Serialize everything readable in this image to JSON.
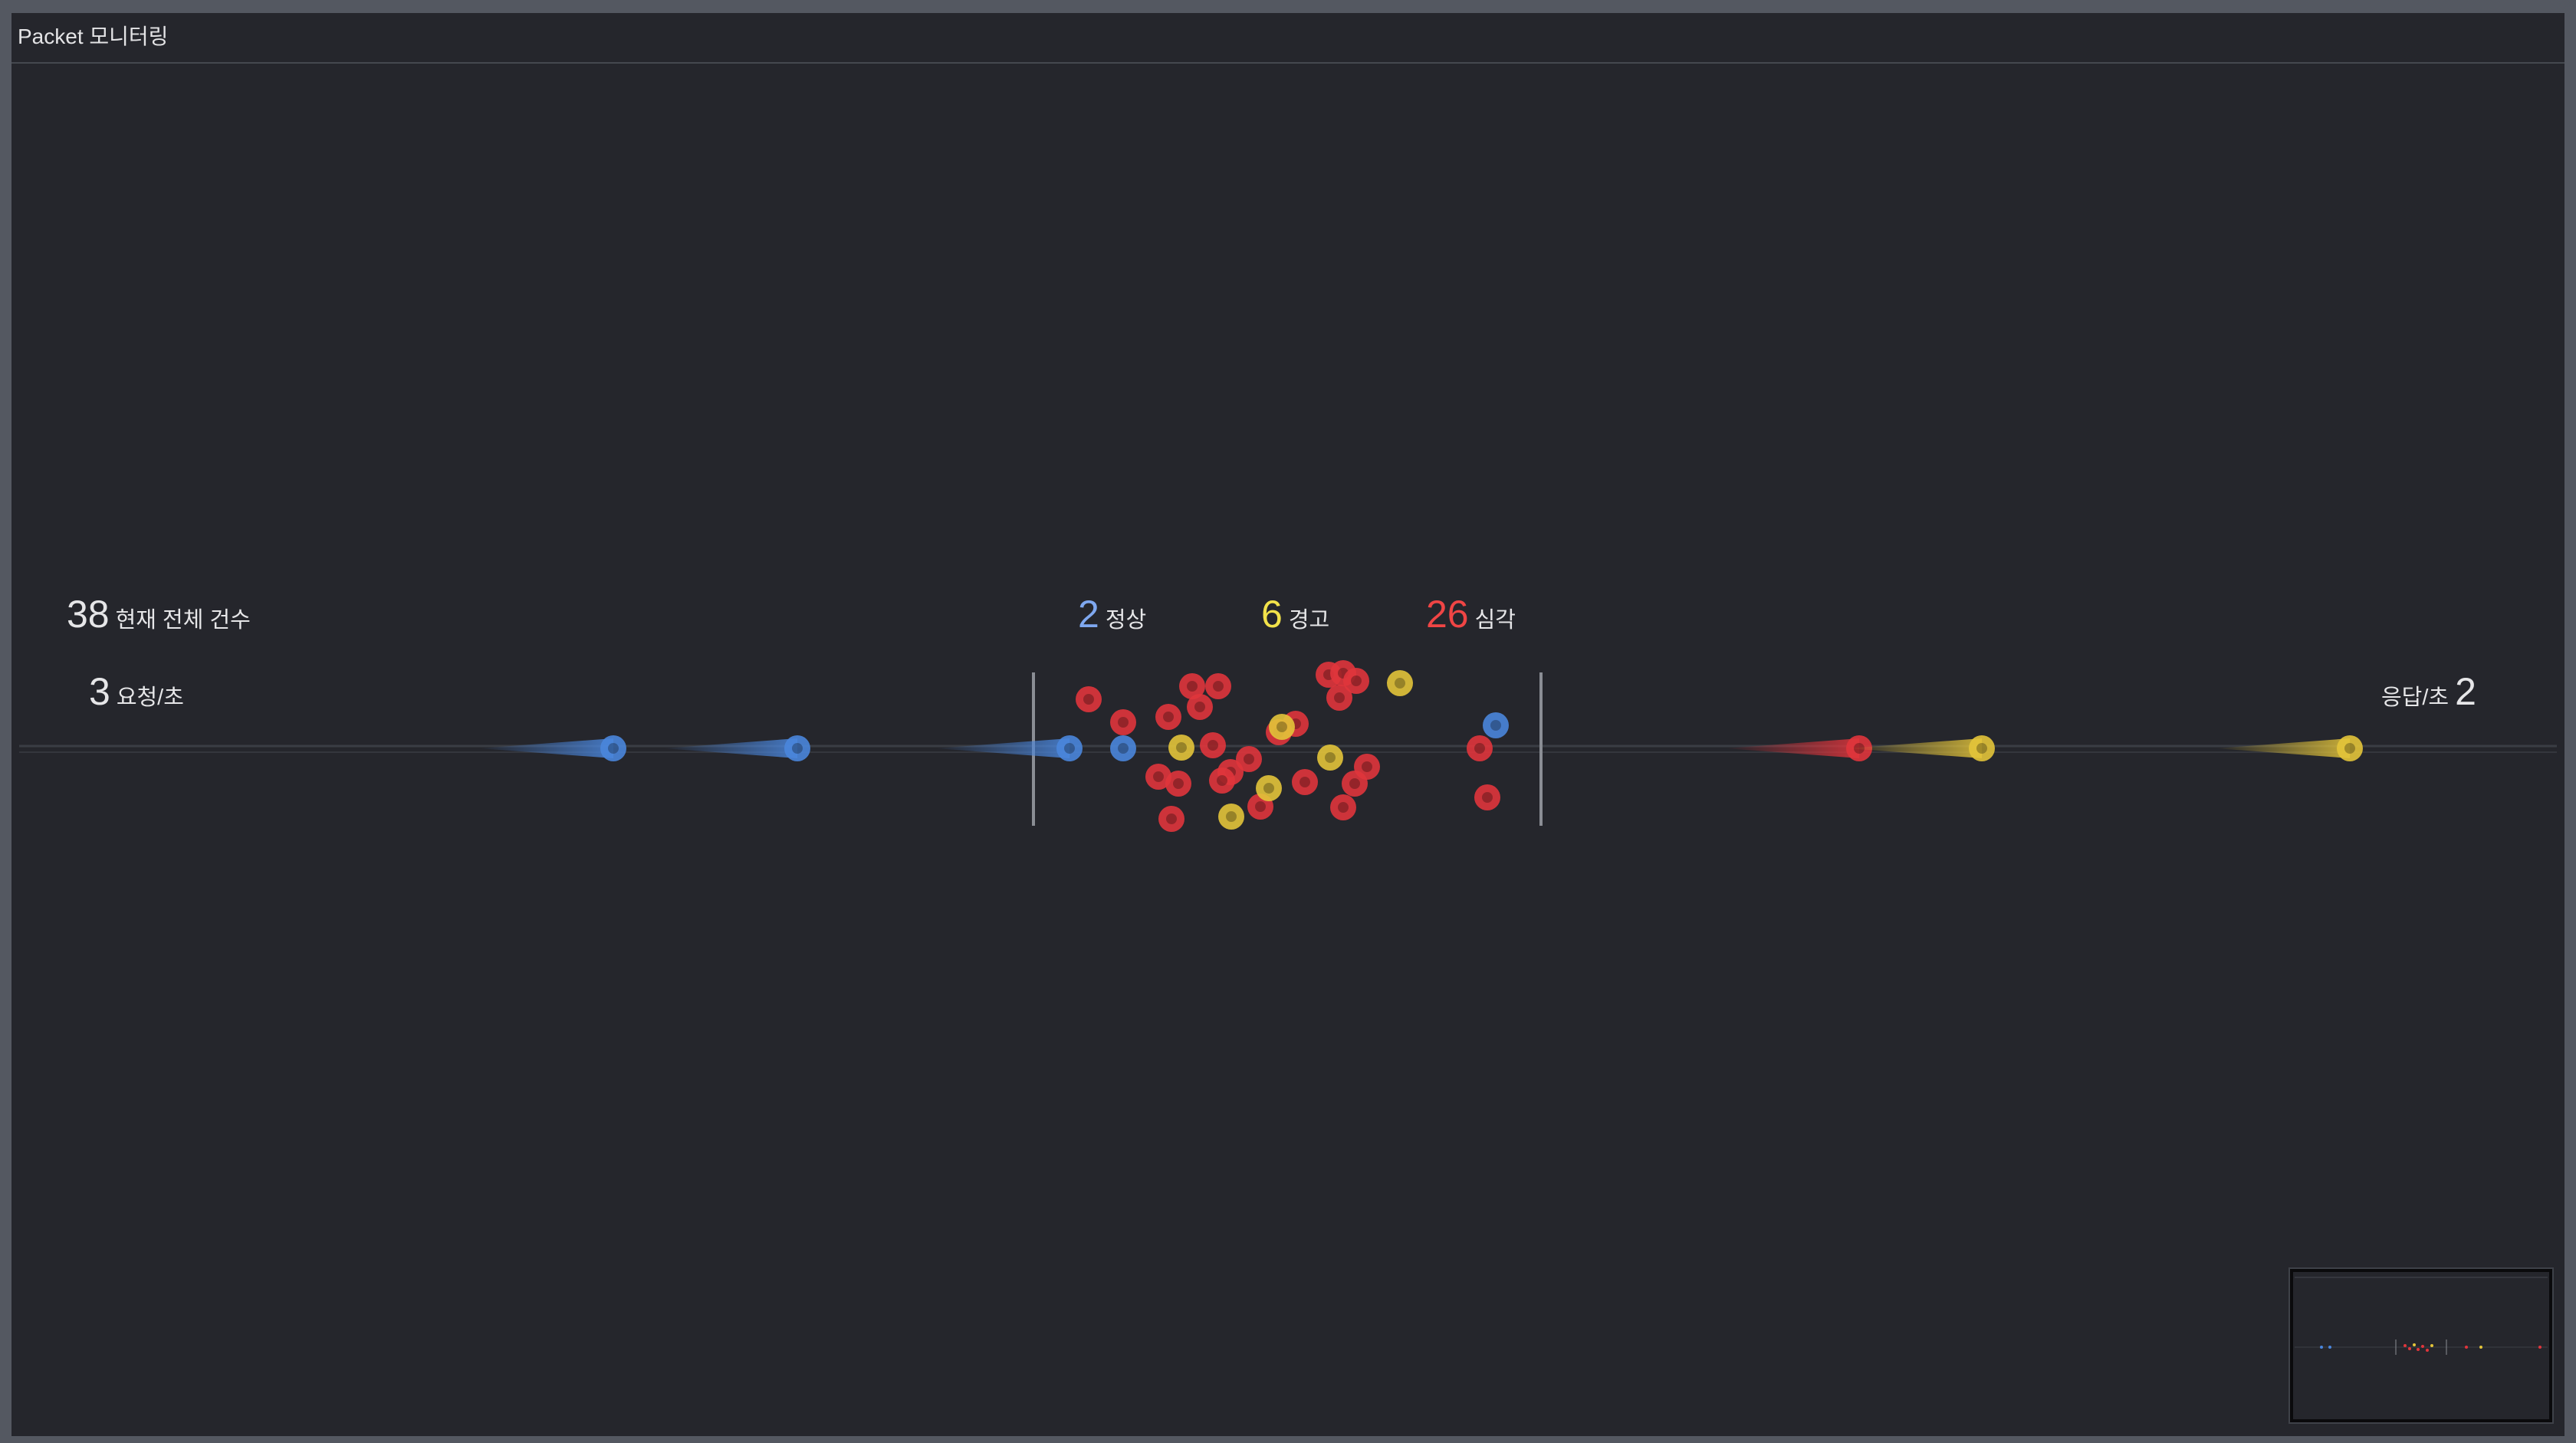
{
  "window": {
    "title": "Packet 모니터링"
  },
  "stats": {
    "total": {
      "value": "38",
      "label": "현재 전체 건수"
    },
    "requests": {
      "value": "3",
      "label": "요청/초"
    },
    "responses": {
      "value": "2",
      "label": "응답/초"
    },
    "normal": {
      "value": "2",
      "label": "정상"
    },
    "warning": {
      "value": "6",
      "label": "경고"
    },
    "critical": {
      "value": "26",
      "label": "심각"
    }
  },
  "colors": {
    "background": "#25262c",
    "normal": "#4a86dc",
    "warning": "#e3c43a",
    "critical": "#e0353c"
  },
  "status_counts": {
    "normal": 2,
    "warning": 6,
    "critical": 26
  },
  "incoming_packets": [
    "normal",
    "normal",
    "normal"
  ],
  "outgoing_packets": [
    "critical",
    "warning",
    "warning"
  ],
  "icons": {
    "minimap": "minimap-thumbnail-icon"
  }
}
